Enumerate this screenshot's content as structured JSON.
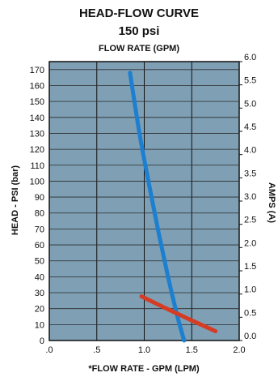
{
  "chart_data": {
    "type": "line",
    "title": "HEAD-FLOW CURVE",
    "subtitle": "150 psi",
    "top_axis_label": "FLOW RATE (GPM)",
    "xlabel": "*FLOW RATE - GPM (LPM)",
    "ylabel_left": "HEAD - PSI (bar)",
    "ylabel_right": "AMPS (A)",
    "xlim": [
      0,
      2.0
    ],
    "ylim_left": [
      0,
      175
    ],
    "ylim_right": [
      0,
      6.0
    ],
    "x_ticks": [
      ".0",
      ".5",
      "1.0",
      "1.5",
      "2.0"
    ],
    "x_tick_values": [
      0,
      0.5,
      1.0,
      1.5,
      2.0
    ],
    "y_left_ticks": [
      "0",
      "10",
      "20",
      "30",
      "40",
      "50",
      "60",
      "70",
      "80",
      "90",
      "100",
      "110",
      "120",
      "130",
      "140",
      "150",
      "160",
      "170"
    ],
    "y_left_tick_values": [
      0,
      10,
      20,
      30,
      40,
      50,
      60,
      70,
      80,
      90,
      100,
      110,
      120,
      130,
      140,
      150,
      160,
      170
    ],
    "y_right_ticks": [
      "0.0",
      "0.5",
      "1.0",
      "1.5",
      "2.0",
      "2.5",
      "3.0",
      "3.5",
      "4.0",
      "4.5",
      "5.0",
      "5.5",
      "6.0"
    ],
    "y_right_tick_values": [
      0.0,
      0.5,
      1.0,
      1.5,
      2.0,
      2.5,
      3.0,
      3.5,
      4.0,
      4.5,
      5.0,
      5.5,
      6.0
    ],
    "grid": true,
    "plot_background": "#7e9fb4",
    "series": [
      {
        "axis": "left",
        "color": "#1c7fd0",
        "x": [
          0.85,
          0.95,
          1.05,
          1.15,
          1.25,
          1.35,
          1.42
        ],
        "y": [
          168,
          130,
          98,
          68,
          40,
          15,
          0
        ]
      },
      {
        "axis": "right",
        "color": "#d63b23",
        "x": [
          0.97,
          1.2,
          1.45,
          1.75
        ],
        "y": [
          0.95,
          0.72,
          0.48,
          0.2
        ]
      }
    ]
  }
}
